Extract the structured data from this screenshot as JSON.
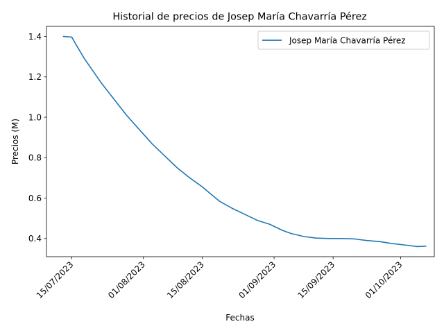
{
  "chart_data": {
    "type": "line",
    "title": "Historial de precios de Josep María Chavarría Pérez",
    "xlabel": "Fechas",
    "ylabel": "Precios (M)",
    "xlim": [
      "2023-07-09",
      "2023-10-09"
    ],
    "ylim": [
      0.31,
      1.45
    ],
    "x_ticks": [
      {
        "date": "2023-07-15",
        "label": "15/07/2023"
      },
      {
        "date": "2023-08-01",
        "label": "01/08/2023"
      },
      {
        "date": "2023-08-15",
        "label": "15/08/2023"
      },
      {
        "date": "2023-09-01",
        "label": "01/09/2023"
      },
      {
        "date": "2023-09-15",
        "label": "15/09/2023"
      },
      {
        "date": "2023-10-01",
        "label": "01/10/2023"
      }
    ],
    "y_ticks": [
      {
        "value": 0.4,
        "label": "0.4"
      },
      {
        "value": 0.6,
        "label": "0.6"
      },
      {
        "value": 0.8,
        "label": "0.8"
      },
      {
        "value": 1.0,
        "label": "1.0"
      },
      {
        "value": 1.2,
        "label": "1.2"
      },
      {
        "value": 1.4,
        "label": "1.4"
      }
    ],
    "grid": false,
    "legend_position": "top-right",
    "series": [
      {
        "name": "Josep María Chavarría Pérez",
        "color": "#1f77b4",
        "x": [
          "2023-07-13",
          "2023-07-15",
          "2023-07-16",
          "2023-07-18",
          "2023-07-20",
          "2023-07-22",
          "2023-07-25",
          "2023-07-28",
          "2023-07-31",
          "2023-08-03",
          "2023-08-06",
          "2023-08-09",
          "2023-08-12",
          "2023-08-15",
          "2023-08-17",
          "2023-08-19",
          "2023-08-22",
          "2023-08-25",
          "2023-08-28",
          "2023-08-31",
          "2023-09-03",
          "2023-09-05",
          "2023-09-08",
          "2023-09-11",
          "2023-09-14",
          "2023-09-17",
          "2023-09-20",
          "2023-09-23",
          "2023-09-26",
          "2023-09-29",
          "2023-10-02",
          "2023-10-05",
          "2023-10-07"
        ],
        "y": [
          1.4,
          1.397,
          1.36,
          1.29,
          1.23,
          1.17,
          1.09,
          1.01,
          0.94,
          0.87,
          0.81,
          0.75,
          0.7,
          0.655,
          0.62,
          0.585,
          0.55,
          0.52,
          0.49,
          0.47,
          0.44,
          0.425,
          0.41,
          0.402,
          0.4,
          0.4,
          0.398,
          0.39,
          0.385,
          0.375,
          0.368,
          0.36,
          0.362
        ]
      }
    ]
  }
}
